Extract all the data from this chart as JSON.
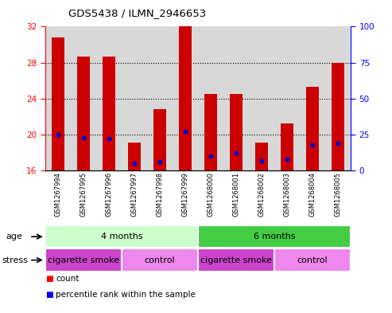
{
  "title": "GDS5438 / ILMN_2946653",
  "samples": [
    "GSM1267994",
    "GSM1267995",
    "GSM1267996",
    "GSM1267997",
    "GSM1267998",
    "GSM1267999",
    "GSM1268000",
    "GSM1268001",
    "GSM1268002",
    "GSM1268003",
    "GSM1268004",
    "GSM1268005"
  ],
  "counts": [
    30.8,
    28.7,
    28.7,
    19.1,
    22.8,
    32.0,
    24.5,
    24.5,
    19.1,
    21.2,
    25.3,
    28.0
  ],
  "percentile_ranks": [
    25,
    23,
    22,
    5,
    6,
    27,
    10,
    12,
    7,
    8,
    18,
    19
  ],
  "ymin": 16,
  "ymax": 32,
  "yticks_left": [
    16,
    20,
    24,
    28,
    32
  ],
  "yticks_right": [
    0,
    25,
    50,
    75,
    100
  ],
  "bar_color": "#cc0000",
  "dot_color": "#0000cc",
  "col_bg_color": "#d8d8d8",
  "age_groups": [
    {
      "label": "4 months",
      "start": 0,
      "end": 6,
      "color": "#ccffcc"
    },
    {
      "label": "6 months",
      "start": 6,
      "end": 12,
      "color": "#44cc44"
    }
  ],
  "stress_groups": [
    {
      "label": "cigarette smoke",
      "start": 0,
      "end": 3,
      "color": "#cc44cc"
    },
    {
      "label": "control",
      "start": 3,
      "end": 6,
      "color": "#ee88ee"
    },
    {
      "label": "cigarette smoke",
      "start": 6,
      "end": 9,
      "color": "#cc44cc"
    },
    {
      "label": "control",
      "start": 9,
      "end": 12,
      "color": "#ee88ee"
    }
  ]
}
